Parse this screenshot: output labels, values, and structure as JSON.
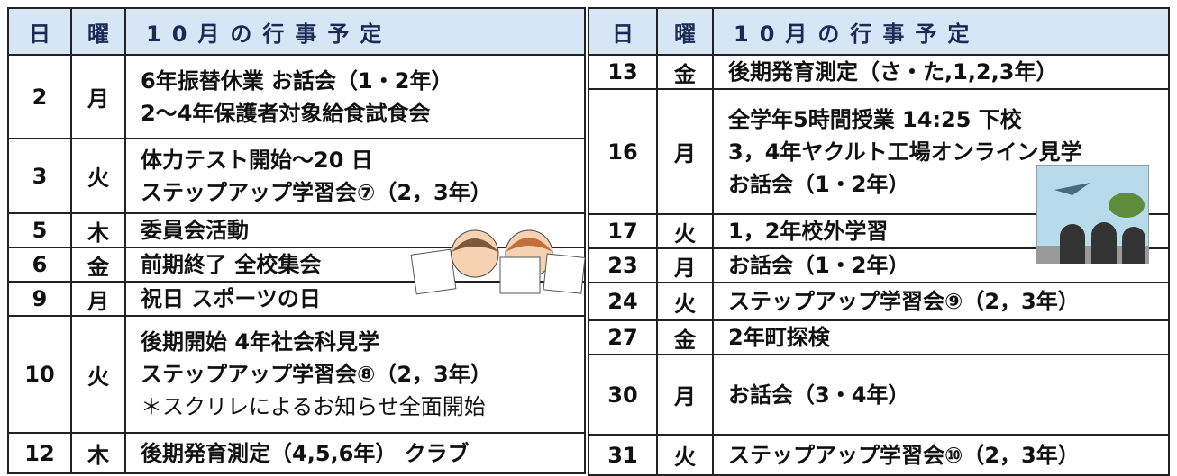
{
  "left_table": {
    "header": [
      "日",
      "曜",
      "10月の行事予定"
    ],
    "rows": [
      {
        "day": "2",
        "weekday": "月",
        "events": [
          "6年振替休業 お話会（1・2年）",
          "2～4年保護者対象給食試食会"
        ]
      },
      {
        "day": "3",
        "weekday": "火",
        "events": [
          "体力テスト開始～20 日",
          "ステップアップ学習会⑦（2，3年）"
        ]
      },
      {
        "day": "5",
        "weekday": "木",
        "events": [
          "委員会活動"
        ]
      },
      {
        "day": "6",
        "weekday": "金",
        "events": [
          "前期終了 全校集会"
        ]
      },
      {
        "day": "9",
        "weekday": "月",
        "events": [
          "祝日 スポーツの日"
        ]
      },
      {
        "day": "10",
        "weekday": "火",
        "events": [
          "後期開始 4年社会科見学",
          "ステップアップ学習会⑧（2，3年）",
          "＊スクリレによるお知らせ全面開始"
        ]
      },
      {
        "day": "12",
        "weekday": "木",
        "events": [
          "後期発育測定（4,5,6年） クラブ"
        ]
      }
    ]
  },
  "right_table": {
    "header": [
      "日",
      "曜",
      "10月の行事予定"
    ],
    "rows": [
      {
        "day": "13",
        "weekday": "金",
        "events": [
          "後期発育測定（さ・た,1,2,3年）"
        ]
      },
      {
        "day": "16",
        "weekday": "月",
        "events": [
          "全学年5時間授業 14:25 下校",
          "3，4年ヤクルト工場オンライン見学",
          "お話会（1・2年）"
        ]
      },
      {
        "day": "17",
        "weekday": "火",
        "events": [
          "1，2年校外学習"
        ]
      },
      {
        "day": "23",
        "weekday": "月",
        "events": [
          "お話会（1・2年）"
        ]
      },
      {
        "day": "24",
        "weekday": "火",
        "events": [
          "ステップアップ学習会⑨（2，3年）"
        ]
      },
      {
        "day": "27",
        "weekday": "金",
        "events": [
          "2年町探検"
        ]
      },
      {
        "day": "30",
        "weekday": "月",
        "events": [
          "お話会（3・4年）"
        ]
      },
      {
        "day": "31",
        "weekday": "火",
        "events": [
          "ステップアップ学習会⑩（2，3年）"
        ]
      }
    ]
  }
}
